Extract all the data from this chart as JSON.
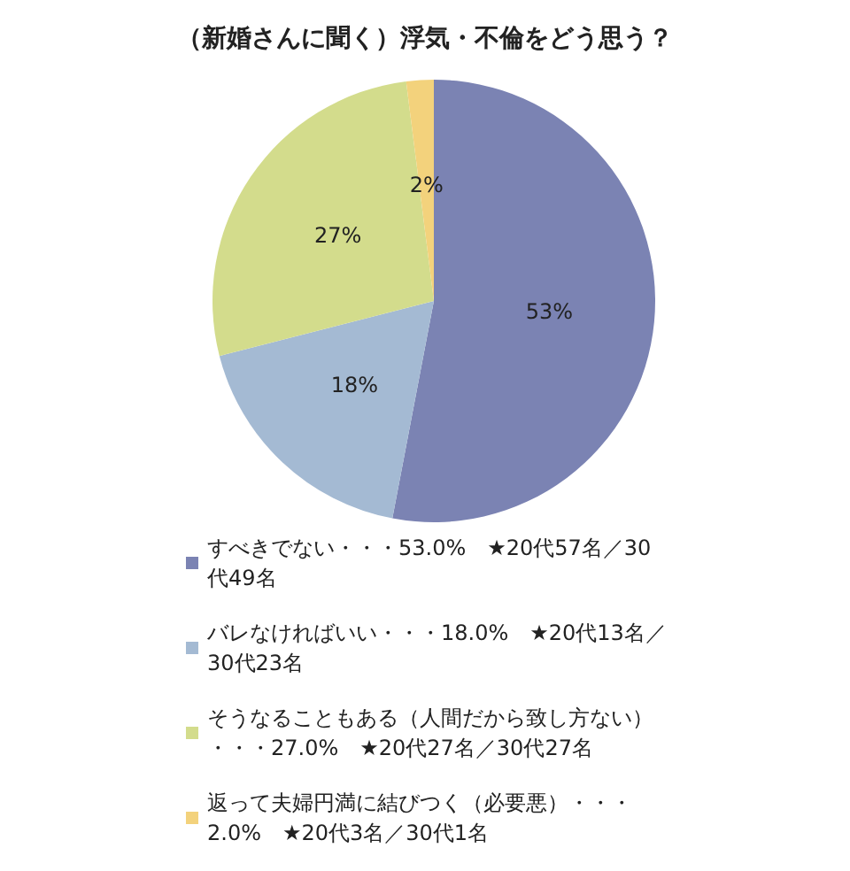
{
  "chart_data": {
    "type": "pie",
    "title": "（新婚さんに聞く）浮気・不倫をどう思う？",
    "categories": [
      "すべきでない・・・53.0%　★20代57名／30代49名",
      "バレなければいい・・・18.0%　★20代13名／30代23名",
      "そうなることもある（人間だから致し方ない）・・・27.0%　★20代27名／30代27名",
      "返って夫婦円満に結びつく（必要悪）・・・2.0%　★20代3名／30代1名"
    ],
    "values": [
      53,
      18,
      27,
      2
    ],
    "colors": [
      "#7b83b3",
      "#a4bad3",
      "#d3dc8c",
      "#f3d27c"
    ],
    "value_labels": [
      "53%",
      "18%",
      "27%",
      "2%"
    ],
    "legend": "bottom"
  }
}
